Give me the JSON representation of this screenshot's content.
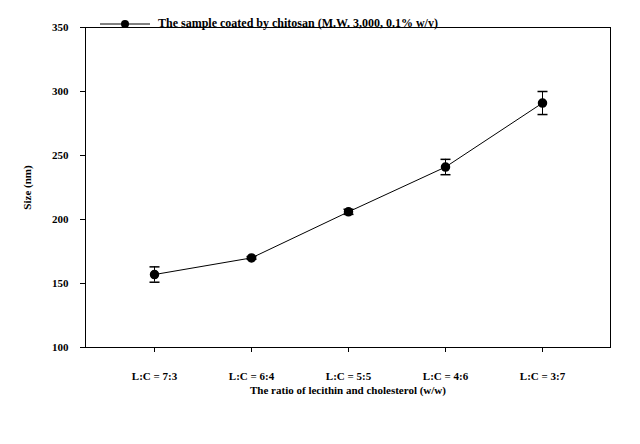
{
  "chart_data": {
    "type": "line",
    "categories": [
      "L:C = 7:3",
      "L:C = 6:4",
      "L:C = 5:5",
      "L:C = 4:6",
      "L:C = 3:7"
    ],
    "series": [
      {
        "name": "The sample coated by chitosan (M.W. 3,000, 0.1% w/v)",
        "color": "#000000",
        "marker": "circle",
        "values": [
          157,
          170,
          206,
          241,
          291
        ],
        "errors": [
          6,
          1,
          2,
          6,
          9
        ]
      }
    ],
    "x_label": "The ratio of lecithin and cholesterol (w/w)",
    "y_label": "Size (nm)",
    "ylim": [
      100,
      350
    ],
    "yticks": [
      100,
      150,
      200,
      250,
      300,
      350
    ],
    "legend": "upper left"
  }
}
